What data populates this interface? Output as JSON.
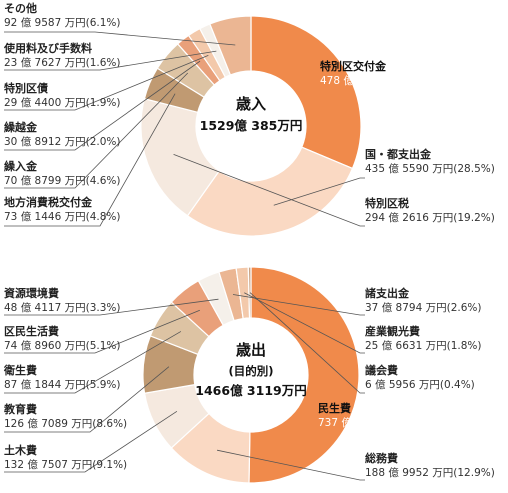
{
  "chart_data": [
    {
      "type": "pie",
      "center_title": "歳入",
      "center_total": "1529億 385万円",
      "colors": {
        "特別区交付金": "#f08a4b",
        "国・都支出金": "#fad9c3",
        "特別区税": "#f5e9df",
        "地方消費税交付金": "#c09a72",
        "繰入金": "#ddc3a3",
        "繰越金": "#e9a07a",
        "特別区債": "#f3c9ab",
        "使用料及び手数料": "#f5f0ea",
        "その他": "#ebb693"
      },
      "slices": [
        {
          "name": "特別区交付金",
          "amount": "478 億 1406 万円",
          "percent": 31.3
        },
        {
          "name": "国・都支出金",
          "amount": "435 億 5590 万円",
          "percent": 28.5
        },
        {
          "name": "特別区税",
          "amount": "294 億 2616 万円",
          "percent": 19.2
        },
        {
          "name": "地方消費税交付金",
          "amount": "73 億 1446 万円",
          "percent": 4.8
        },
        {
          "name": "繰入金",
          "amount": "70 億 8799 万円",
          "percent": 4.6
        },
        {
          "name": "繰越金",
          "amount": "30 億 8912 万円",
          "percent": 2.0
        },
        {
          "name": "特別区債",
          "amount": "29 億 4400 万円",
          "percent": 1.9
        },
        {
          "name": "使用料及び手数料",
          "amount": "23 億 7627 万円",
          "percent": 1.6
        },
        {
          "name": "その他",
          "amount": "92 億 9587 万円",
          "percent": 6.1
        }
      ]
    },
    {
      "type": "pie",
      "center_title": "歳出",
      "center_subtitle": "(目的別)",
      "center_total": "1466億 3119万円",
      "colors": {
        "民生費": "#f08a4b",
        "総務費": "#fad9c3",
        "土木費": "#f5e9df",
        "教育費": "#c09a72",
        "衛生費": "#ddc3a3",
        "区民生活費": "#e9a07a",
        "資源環境費": "#f5f0ea",
        "諸支出金": "#ebb693",
        "産業観光費": "#f3c9ab",
        "議会費": "#c9a486"
      },
      "slices": [
        {
          "name": "民生費",
          "amount": "737 億 2268 万円",
          "percent": 50.3
        },
        {
          "name": "総務費",
          "amount": "188 億 9952 万円",
          "percent": 12.9
        },
        {
          "name": "土木費",
          "amount": "132 億 7507 万円",
          "percent": 9.1
        },
        {
          "name": "教育費",
          "amount": "126 億 7089 万円",
          "percent": 8.6
        },
        {
          "name": "衛生費",
          "amount": "87 億 1844 万円",
          "percent": 5.9
        },
        {
          "name": "区民生活費",
          "amount": "74 億 8960 万円",
          "percent": 5.1
        },
        {
          "name": "資源環境費",
          "amount": "48 億 4117 万円",
          "percent": 3.3
        },
        {
          "name": "諸支出金",
          "amount": "37 億 8794 万円",
          "percent": 2.6
        },
        {
          "name": "産業観光費",
          "amount": "25 億 6631 万円",
          "percent": 1.8
        },
        {
          "name": "議会費",
          "amount": "6 億 5956 万円",
          "percent": 0.4
        }
      ]
    }
  ]
}
